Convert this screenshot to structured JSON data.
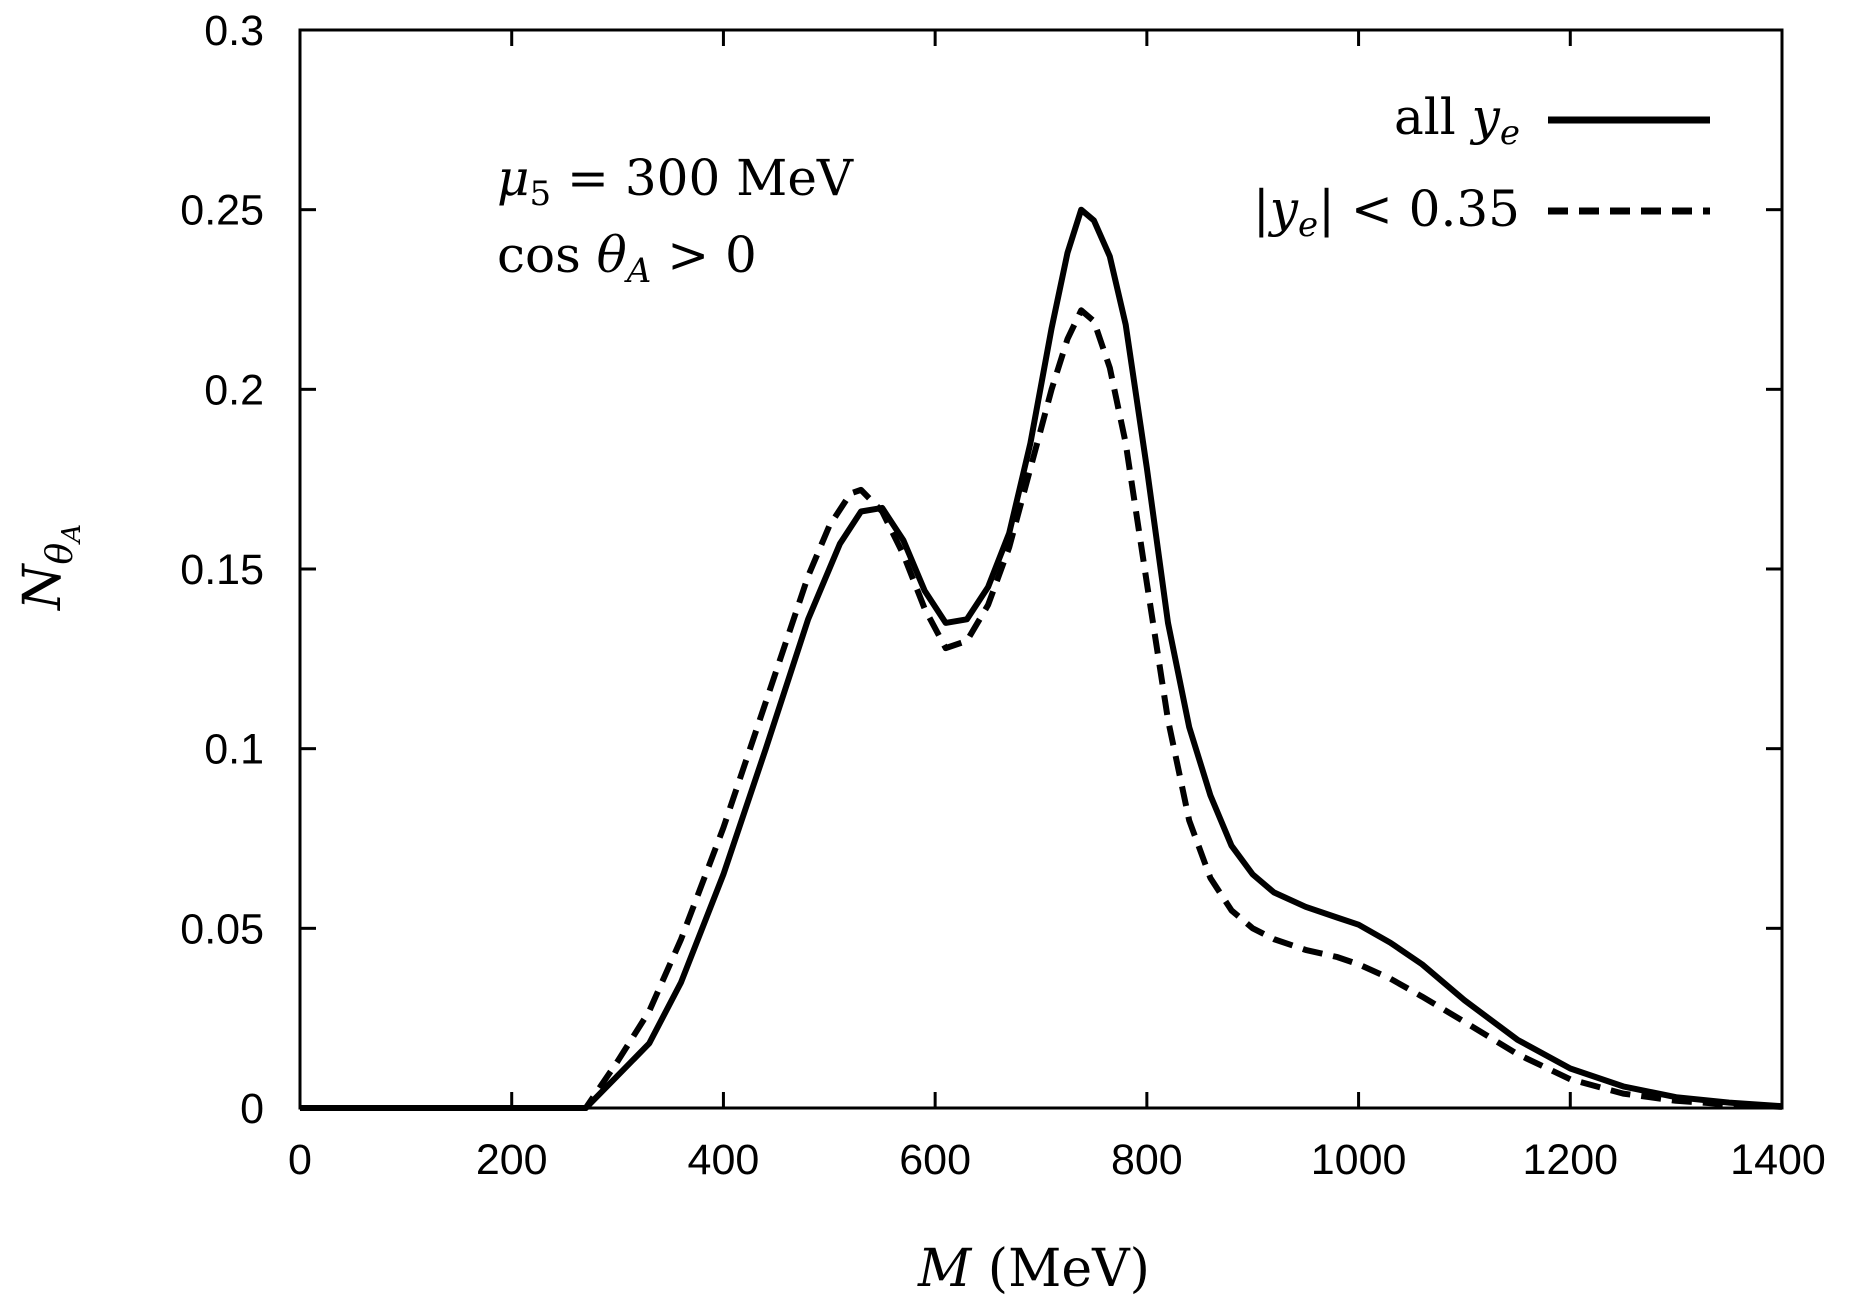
{
  "chart_data": {
    "type": "line",
    "title": "",
    "xlabel": "M (MeV)",
    "ylabel": "N_{θ_A}",
    "xlim": [
      0,
      1400
    ],
    "ylim": [
      0,
      0.3
    ],
    "x_ticks": [
      0,
      200,
      400,
      600,
      800,
      1000,
      1200,
      1400
    ],
    "y_ticks": [
      0,
      0.05,
      0.1,
      0.15,
      0.2,
      0.25,
      0.3
    ],
    "x_tick_labels": [
      "0",
      "200",
      "400",
      "600",
      "800",
      "1000",
      "1200",
      "1400"
    ],
    "y_tick_labels": [
      "0",
      "0.05",
      "0.1",
      "0.15",
      "0.2",
      "0.25",
      "0.3"
    ],
    "grid": false,
    "legend_position": "top-right",
    "annotation": {
      "line1": "μ5 = 300 MeV",
      "line2": "cos θA > 0"
    },
    "series": [
      {
        "name": "all y_e",
        "style": "solid",
        "color": "#000000",
        "x": [
          0,
          100,
          200,
          270,
          300,
          330,
          360,
          400,
          440,
          480,
          510,
          530,
          550,
          570,
          590,
          610,
          630,
          650,
          670,
          690,
          710,
          725,
          738,
          750,
          765,
          780,
          800,
          820,
          840,
          860,
          880,
          900,
          920,
          950,
          980,
          1000,
          1030,
          1060,
          1100,
          1150,
          1200,
          1250,
          1300,
          1350,
          1400
        ],
        "y": [
          0,
          0,
          0,
          0,
          0.009,
          0.018,
          0.035,
          0.065,
          0.1,
          0.136,
          0.157,
          0.166,
          0.167,
          0.158,
          0.144,
          0.135,
          0.136,
          0.145,
          0.16,
          0.185,
          0.217,
          0.238,
          0.25,
          0.247,
          0.237,
          0.218,
          0.178,
          0.135,
          0.106,
          0.087,
          0.073,
          0.065,
          0.06,
          0.056,
          0.053,
          0.051,
          0.046,
          0.04,
          0.03,
          0.019,
          0.011,
          0.006,
          0.003,
          0.0015,
          0.0005
        ]
      },
      {
        "name": "|y_e| < 0.35",
        "style": "dashed",
        "color": "#000000",
        "x": [
          0,
          100,
          200,
          270,
          300,
          330,
          360,
          400,
          440,
          480,
          500,
          520,
          530,
          550,
          570,
          590,
          610,
          630,
          650,
          670,
          690,
          710,
          725,
          738,
          750,
          765,
          780,
          800,
          820,
          840,
          860,
          880,
          900,
          920,
          950,
          980,
          1000,
          1030,
          1060,
          1100,
          1150,
          1200,
          1250,
          1300,
          1350,
          1400
        ],
        "y": [
          0,
          0,
          0,
          0,
          0.013,
          0.027,
          0.047,
          0.078,
          0.113,
          0.148,
          0.162,
          0.171,
          0.172,
          0.166,
          0.154,
          0.139,
          0.128,
          0.13,
          0.14,
          0.156,
          0.178,
          0.2,
          0.214,
          0.222,
          0.219,
          0.206,
          0.185,
          0.146,
          0.108,
          0.08,
          0.064,
          0.055,
          0.05,
          0.047,
          0.044,
          0.042,
          0.04,
          0.036,
          0.031,
          0.024,
          0.015,
          0.008,
          0.004,
          0.002,
          0.001,
          0.0003
        ]
      }
    ]
  }
}
